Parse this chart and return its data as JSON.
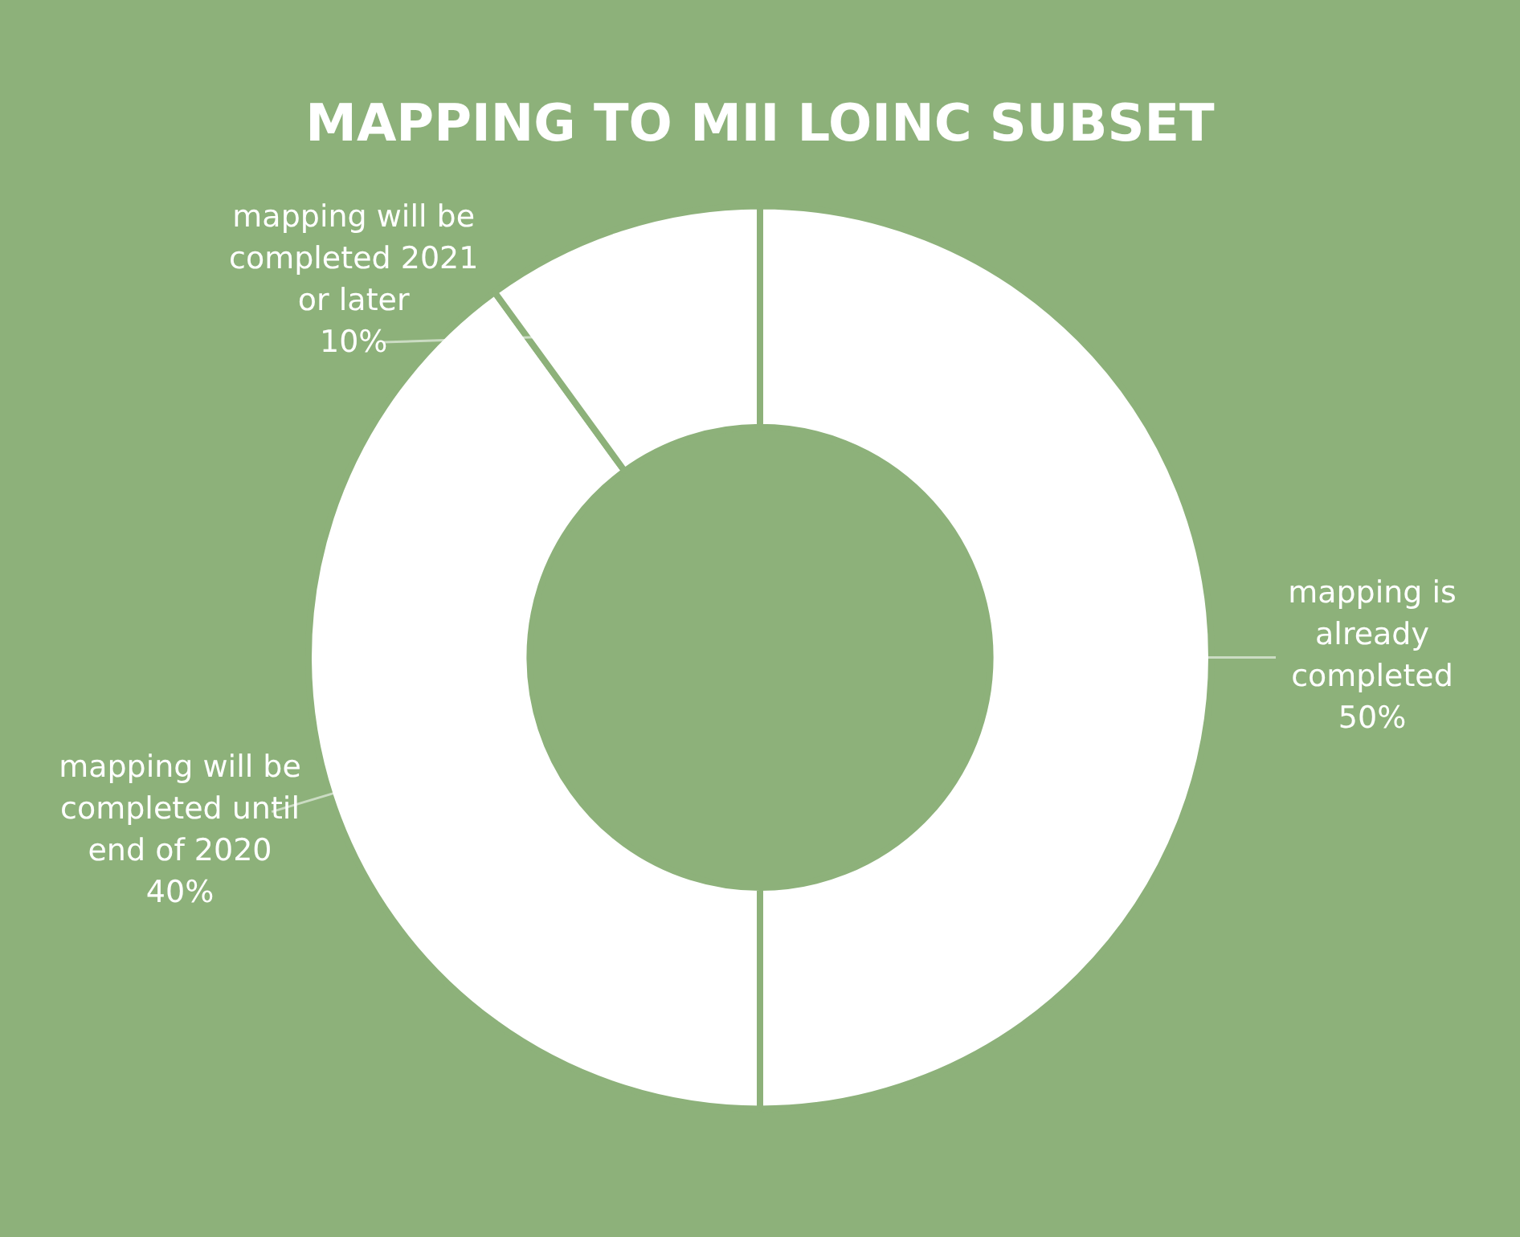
{
  "chart_data": {
    "type": "donut",
    "title": "MAPPING TO MII LOINC SUBSET",
    "categories": [
      "mapping is already completed",
      "mapping will be completed until end of 2020",
      "mapping will be completed 2021 or later"
    ],
    "values": [
      50,
      40,
      10
    ],
    "colors": [
      "#ffffff",
      "#ffffff",
      "#ffffff"
    ],
    "value_labels": [
      "50%",
      "40%",
      "10%"
    ],
    "legend": false
  }
}
